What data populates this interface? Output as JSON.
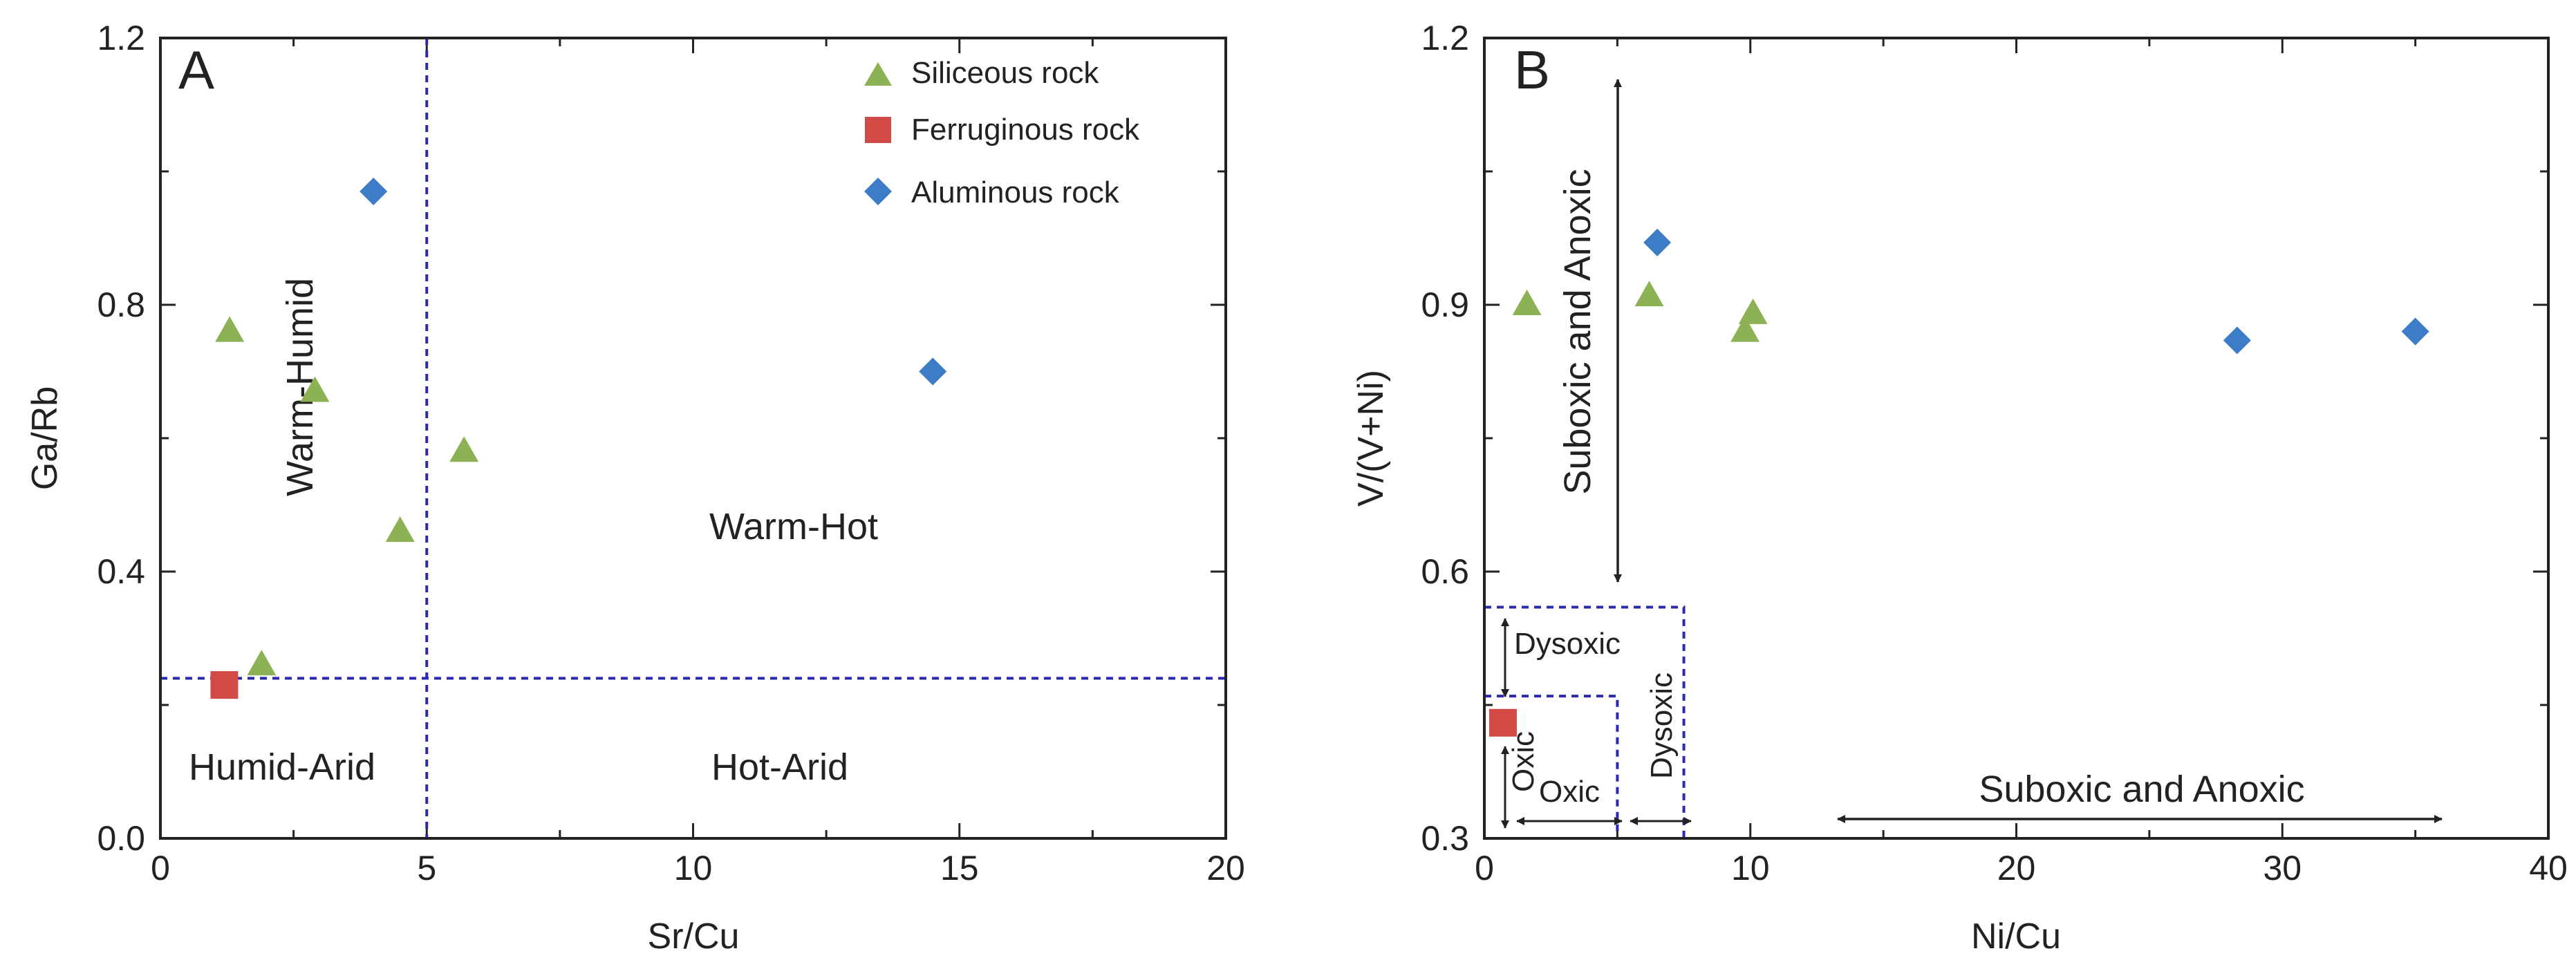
{
  "colors": {
    "siliceous": "#8DB255",
    "ferruginous": "#D24A45",
    "aluminous": "#3D7CC6",
    "threshold": "#2A2AB0",
    "axis": "#222222"
  },
  "legend": [
    {
      "label": "Siliceous rock",
      "marker": "triangle",
      "color": "#8DB255"
    },
    {
      "label": "Ferruginous rock",
      "marker": "square",
      "color": "#D24A45"
    },
    {
      "label": "Aluminous rock",
      "marker": "diamond",
      "color": "#3D7CC6"
    }
  ],
  "chart_data": [
    {
      "type": "scatter",
      "panel": "A",
      "xlabel": "Sr/Cu",
      "ylabel": "Ga/Rb",
      "xlim": [
        0,
        20
      ],
      "ylim": [
        0,
        1.2
      ],
      "xticks": [
        0,
        5,
        10,
        15,
        20
      ],
      "yticks": [
        0.0,
        0.4,
        0.8,
        1.2
      ],
      "xtick_labels": [
        "0",
        "5",
        "10",
        "15",
        "20"
      ],
      "ytick_labels": [
        "0.0",
        "0.4",
        "0.8",
        "1.2"
      ],
      "thresholds": {
        "x": [
          5
        ],
        "y": [
          0.24
        ]
      },
      "regions": [
        {
          "label": "Warm-Humid",
          "rotated": true
        },
        {
          "label": "Warm-Hot"
        },
        {
          "label": "Humid-Arid"
        },
        {
          "label": "Hot-Arid"
        }
      ],
      "series": [
        {
          "name": "Siliceous rock",
          "marker": "triangle",
          "points": [
            [
              1.3,
              0.76
            ],
            [
              2.9,
              0.67
            ],
            [
              5.7,
              0.58
            ],
            [
              4.5,
              0.46
            ],
            [
              1.9,
              0.26
            ]
          ]
        },
        {
          "name": "Ferruginous rock",
          "marker": "square",
          "points": [
            [
              1.2,
              0.23
            ]
          ]
        },
        {
          "name": "Aluminous rock",
          "marker": "diamond",
          "points": [
            [
              4.0,
              0.97
            ],
            [
              14.5,
              0.7
            ]
          ]
        }
      ]
    },
    {
      "type": "scatter",
      "panel": "B",
      "xlabel": "Ni/Cu",
      "ylabel": "V/(V+Ni)",
      "xlim": [
        0,
        40
      ],
      "ylim": [
        0.3,
        1.2
      ],
      "xticks": [
        0,
        10,
        20,
        30,
        40
      ],
      "yticks": [
        0.3,
        0.6,
        0.9,
        1.2
      ],
      "xtick_labels": [
        "0",
        "10",
        "20",
        "30",
        "40"
      ],
      "ytick_labels": [
        "0.3",
        "0.6",
        "0.9",
        "1.2"
      ],
      "boxes": [
        {
          "name": "oxic",
          "x": [
            0,
            5
          ],
          "y": [
            0.3,
            0.46
          ]
        },
        {
          "name": "dysoxic",
          "x": [
            0,
            7.5
          ],
          "y": [
            0.3,
            0.56
          ]
        }
      ],
      "annotations": {
        "suboxic_anoxic_vertical": "Suboxic and Anoxic",
        "suboxic_anoxic_horizontal": "Suboxic and Anoxic",
        "dysoxic_vertical": "Dysoxic",
        "dysoxic_horizontal": "Dysoxic",
        "oxic_vertical": "Oxic",
        "oxic_horizontal": "Oxic"
      },
      "series": [
        {
          "name": "Siliceous rock",
          "marker": "triangle",
          "points": [
            [
              1.6,
              0.9
            ],
            [
              6.2,
              0.91
            ],
            [
              9.8,
              0.87
            ],
            [
              10.1,
              0.89
            ]
          ]
        },
        {
          "name": "Ferruginous rock",
          "marker": "square",
          "points": [
            [
              0.7,
              0.43
            ]
          ]
        },
        {
          "name": "Aluminous rock",
          "marker": "diamond",
          "points": [
            [
              6.5,
              0.97
            ],
            [
              28.3,
              0.86
            ],
            [
              35.0,
              0.87
            ]
          ]
        }
      ]
    }
  ]
}
